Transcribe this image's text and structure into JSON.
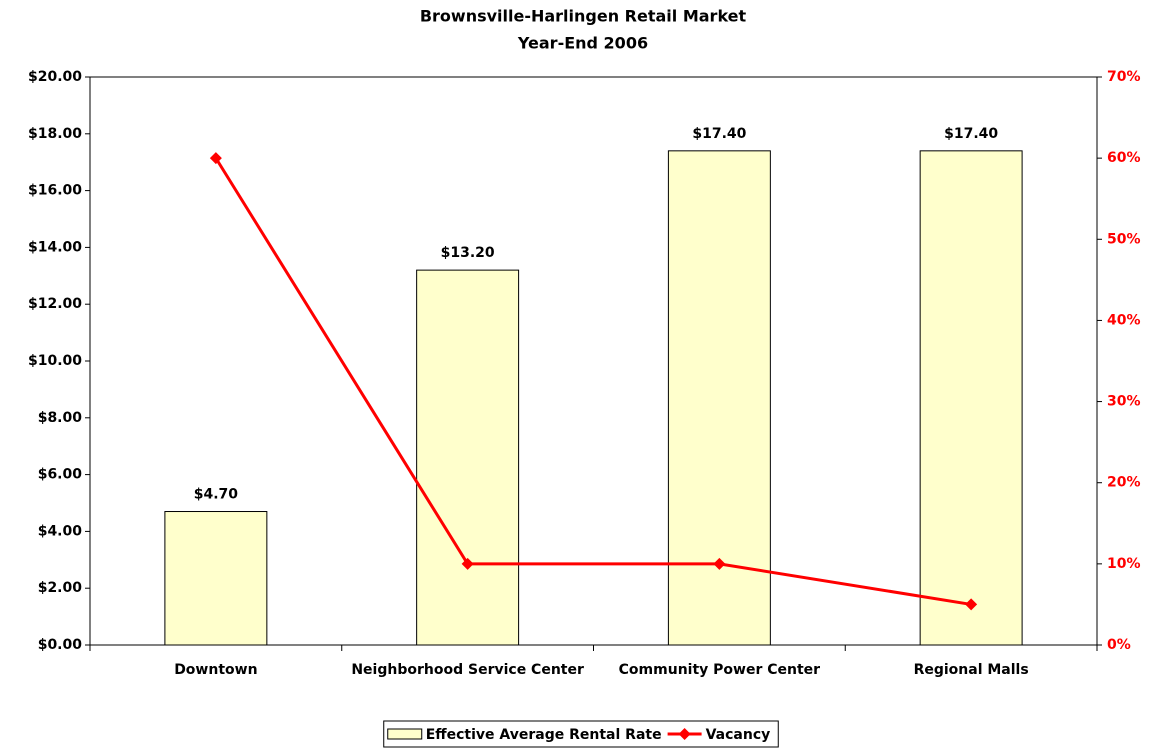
{
  "chart_data": {
    "type": "bar",
    "title": "Brownsville-Harlingen Retail Market",
    "subtitle": "Year-End 2006",
    "categories": [
      "Downtown",
      "Neighborhood Service Center",
      "Community Power Center",
      "Regional Malls"
    ],
    "series": [
      {
        "name": "Effective Average Rental Rate",
        "type": "bar",
        "color": "#ffffcc",
        "values": [
          4.7,
          13.2,
          17.4,
          17.4
        ],
        "value_labels": [
          "$4.70",
          "$13.20",
          "$17.40",
          "$17.40"
        ]
      },
      {
        "name": "Vacancy",
        "type": "line",
        "axis": "y2",
        "color": "#ff0000",
        "values": [
          60,
          10,
          10,
          5
        ]
      }
    ],
    "ylim": [
      0,
      20
    ],
    "yticks": [
      {
        "value": 0,
        "label": "$0.00"
      },
      {
        "value": 2,
        "label": "$2.00"
      },
      {
        "value": 4,
        "label": "$4.00"
      },
      {
        "value": 6,
        "label": "$6.00"
      },
      {
        "value": 8,
        "label": "$8.00"
      },
      {
        "value": 10,
        "label": "$10.00"
      },
      {
        "value": 12,
        "label": "$12.00"
      },
      {
        "value": 14,
        "label": "$14.00"
      },
      {
        "value": 16,
        "label": "$16.00"
      },
      {
        "value": 18,
        "label": "$18.00"
      },
      {
        "value": 20,
        "label": "$20.00"
      }
    ],
    "y2lim": [
      0,
      70
    ],
    "y2ticks": [
      {
        "value": 0,
        "label": "0%"
      },
      {
        "value": 10,
        "label": "10%"
      },
      {
        "value": 20,
        "label": "20%"
      },
      {
        "value": 30,
        "label": "30%"
      },
      {
        "value": 40,
        "label": "40%"
      },
      {
        "value": 50,
        "label": "50%"
      },
      {
        "value": 60,
        "label": "60%"
      },
      {
        "value": 70,
        "label": "70%"
      }
    ],
    "y2_color": "#ff0000",
    "grid": false,
    "legend": "bottom"
  }
}
